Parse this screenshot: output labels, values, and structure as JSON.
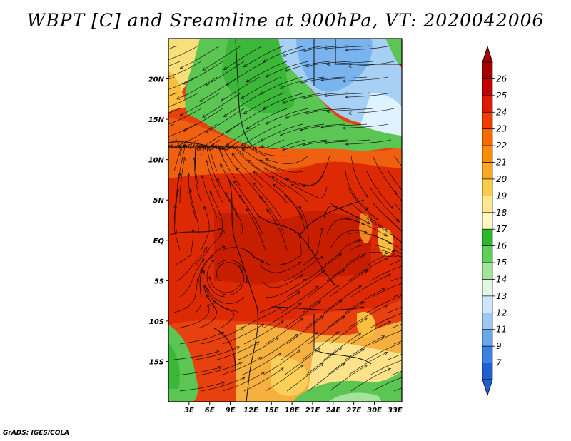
{
  "title": "WBPT [C] and Sreamline at 900hPa, VT: 2020042006",
  "credit": "GrADS: IGES/COLA",
  "map": {
    "lat_labels": [
      "20N",
      "15N",
      "10N",
      "5N",
      "EQ",
      "5S",
      "10S",
      "15S"
    ],
    "lat_values": [
      20,
      15,
      10,
      5,
      0,
      -5,
      -10,
      -15
    ],
    "lat_range": [
      -20,
      25
    ],
    "lon_labels": [
      "3E",
      "6E",
      "9E",
      "12E",
      "15E",
      "18E",
      "21E",
      "24E",
      "27E",
      "30E",
      "33E"
    ],
    "lon_values": [
      3,
      6,
      9,
      12,
      15,
      18,
      21,
      24,
      27,
      30,
      33
    ],
    "lon_range": [
      0,
      34
    ]
  },
  "colorbar": {
    "labels": [
      "26",
      "25",
      "24",
      "23",
      "22",
      "21",
      "20",
      "19",
      "18",
      "17",
      "16",
      "15",
      "14",
      "13",
      "12",
      "11",
      "9",
      "7"
    ],
    "colors": [
      "#a50000",
      "#c20000",
      "#dd1a00",
      "#f03c00",
      "#f76a00",
      "#fa8c00",
      "#f9a820",
      "#fbcb4a",
      "#fde890",
      "#fdf9c0",
      "#2eb82e",
      "#5fcf58",
      "#a4e39c",
      "#e2f7e2",
      "#cde6fb",
      "#9ec8f2",
      "#6aa8ec",
      "#3a82e0",
      "#1f60d0"
    ]
  }
}
